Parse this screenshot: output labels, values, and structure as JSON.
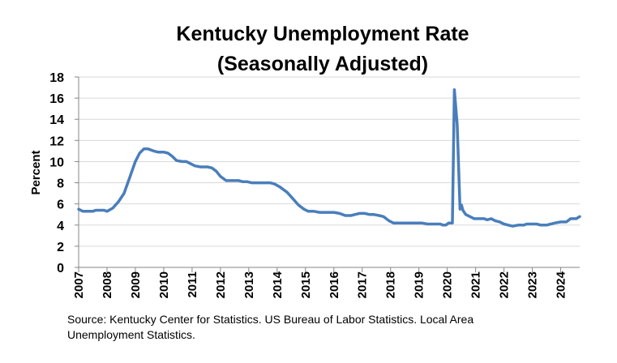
{
  "chart_data": {
    "type": "line",
    "title_line1": "Kentucky Unemployment Rate",
    "title_line2": "(Seasonally Adjusted)",
    "xlabel": "",
    "ylabel": "Percent",
    "ylim": [
      0,
      18
    ],
    "yticks": [
      0,
      2,
      4,
      6,
      8,
      10,
      12,
      14,
      16,
      18
    ],
    "xlim": [
      2007.0,
      2024.67
    ],
    "xticks": [
      "2007",
      "2008",
      "2009",
      "2010",
      "2011",
      "2012",
      "2013",
      "2014",
      "2015",
      "2016",
      "2017",
      "2018",
      "2019",
      "2020",
      "2021",
      "2022",
      "2023",
      "2024"
    ],
    "grid": true,
    "series": [
      {
        "name": "Kentucky Unemployment Rate",
        "color": "#4A7EBB",
        "points": [
          [
            2007.0,
            5.5
          ],
          [
            2007.15,
            5.3
          ],
          [
            2007.5,
            5.3
          ],
          [
            2007.6,
            5.4
          ],
          [
            2007.9,
            5.4
          ],
          [
            2008.0,
            5.3
          ],
          [
            2008.2,
            5.6
          ],
          [
            2008.4,
            6.2
          ],
          [
            2008.6,
            7.0
          ],
          [
            2008.8,
            8.5
          ],
          [
            2009.0,
            10.0
          ],
          [
            2009.15,
            10.8
          ],
          [
            2009.3,
            11.2
          ],
          [
            2009.45,
            11.2
          ],
          [
            2009.65,
            11.0
          ],
          [
            2009.8,
            10.9
          ],
          [
            2010.0,
            10.9
          ],
          [
            2010.15,
            10.8
          ],
          [
            2010.3,
            10.5
          ],
          [
            2010.45,
            10.1
          ],
          [
            2010.65,
            10.0
          ],
          [
            2010.8,
            10.0
          ],
          [
            2010.95,
            9.8
          ],
          [
            2011.1,
            9.6
          ],
          [
            2011.3,
            9.5
          ],
          [
            2011.55,
            9.5
          ],
          [
            2011.7,
            9.4
          ],
          [
            2011.85,
            9.1
          ],
          [
            2012.0,
            8.6
          ],
          [
            2012.2,
            8.2
          ],
          [
            2012.45,
            8.2
          ],
          [
            2012.65,
            8.2
          ],
          [
            2012.8,
            8.1
          ],
          [
            2012.95,
            8.1
          ],
          [
            2013.1,
            8.0
          ],
          [
            2013.5,
            8.0
          ],
          [
            2013.75,
            8.0
          ],
          [
            2013.9,
            7.9
          ],
          [
            2014.1,
            7.6
          ],
          [
            2014.35,
            7.1
          ],
          [
            2014.55,
            6.5
          ],
          [
            2014.75,
            5.9
          ],
          [
            2014.95,
            5.5
          ],
          [
            2015.1,
            5.3
          ],
          [
            2015.3,
            5.3
          ],
          [
            2015.5,
            5.2
          ],
          [
            2015.75,
            5.2
          ],
          [
            2016.0,
            5.2
          ],
          [
            2016.2,
            5.1
          ],
          [
            2016.4,
            4.9
          ],
          [
            2016.6,
            4.9
          ],
          [
            2016.75,
            5.0
          ],
          [
            2016.9,
            5.1
          ],
          [
            2017.1,
            5.1
          ],
          [
            2017.25,
            5.0
          ],
          [
            2017.4,
            5.0
          ],
          [
            2017.6,
            4.9
          ],
          [
            2017.75,
            4.8
          ],
          [
            2017.95,
            4.4
          ],
          [
            2018.1,
            4.2
          ],
          [
            2018.5,
            4.2
          ],
          [
            2018.9,
            4.2
          ],
          [
            2019.1,
            4.2
          ],
          [
            2019.3,
            4.1
          ],
          [
            2019.55,
            4.1
          ],
          [
            2019.75,
            4.1
          ],
          [
            2019.85,
            4.0
          ],
          [
            2019.95,
            4.0
          ],
          [
            2020.05,
            4.2
          ],
          [
            2020.18,
            4.2
          ],
          [
            2020.25,
            16.8
          ],
          [
            2020.35,
            13.5
          ],
          [
            2020.45,
            5.5
          ],
          [
            2020.5,
            5.9
          ],
          [
            2020.55,
            5.4
          ],
          [
            2020.65,
            5.0
          ],
          [
            2020.8,
            4.8
          ],
          [
            2020.95,
            4.6
          ],
          [
            2021.1,
            4.6
          ],
          [
            2021.3,
            4.6
          ],
          [
            2021.4,
            4.5
          ],
          [
            2021.55,
            4.6
          ],
          [
            2021.7,
            4.4
          ],
          [
            2021.85,
            4.3
          ],
          [
            2022.0,
            4.1
          ],
          [
            2022.15,
            4.0
          ],
          [
            2022.3,
            3.9
          ],
          [
            2022.5,
            4.0
          ],
          [
            2022.7,
            4.0
          ],
          [
            2022.8,
            4.1
          ],
          [
            2023.0,
            4.1
          ],
          [
            2023.15,
            4.1
          ],
          [
            2023.3,
            4.0
          ],
          [
            2023.5,
            4.0
          ],
          [
            2023.65,
            4.1
          ],
          [
            2023.8,
            4.2
          ],
          [
            2024.0,
            4.3
          ],
          [
            2024.2,
            4.3
          ],
          [
            2024.35,
            4.6
          ],
          [
            2024.55,
            4.6
          ],
          [
            2024.67,
            4.8
          ]
        ]
      }
    ]
  },
  "source_text": "Source: Kentucky Center for Statistics. US Bureau of Labor Statistics. Local Area Unemployment Statistics."
}
